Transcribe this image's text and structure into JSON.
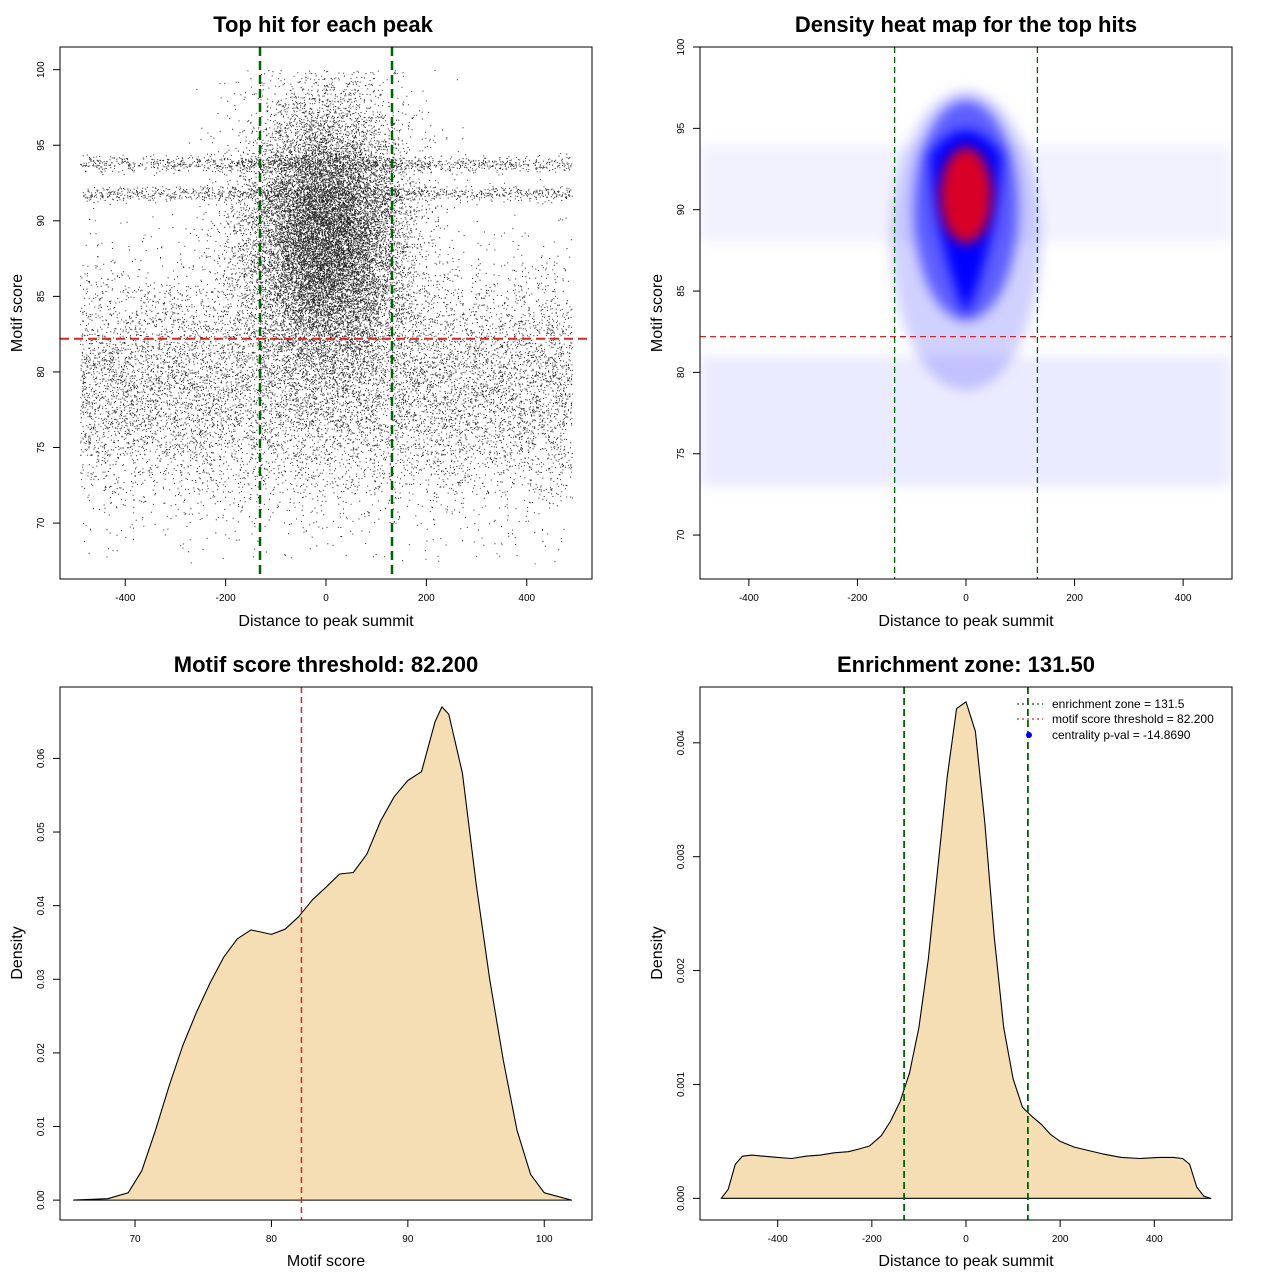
{
  "figure": {
    "background": "#ffffff"
  },
  "colors": {
    "points": "#000000",
    "zone_line": "#006400",
    "threshold_line": "#d62728",
    "density_fill": "#f5deb3",
    "heat_low": "#ffffff",
    "heat_mid": "#0000ff",
    "heat_high": "#ff0000",
    "legend_point": "#0000ff"
  },
  "chart_data": [
    {
      "id": "scatter",
      "type": "scatter",
      "title": "Top hit for each peak",
      "xlabel": "Distance to peak summit",
      "ylabel": "Motif score",
      "xlim": [
        -530,
        530
      ],
      "ylim": [
        66.3,
        101.5
      ],
      "xticks": [
        -400,
        -200,
        0,
        200,
        400
      ],
      "yticks": [
        70,
        75,
        80,
        85,
        90,
        95,
        100
      ],
      "point_count_estimate": 30000,
      "x_range": [
        -490,
        490
      ],
      "central_cluster": {
        "x_center": 0,
        "x_spread": 80,
        "y_center": 89,
        "y_spread": 4.5
      },
      "background_band": {
        "y_center": 79,
        "y_spread": 4
      },
      "dense_row_y": 91.8,
      "vlines": [
        -131.5,
        131.5
      ],
      "hline": 82.2
    },
    {
      "id": "heatmap",
      "type": "heatmap",
      "title": "Density heat map for the top hits",
      "xlabel": "Distance to peak summit",
      "ylabel": "Motif score",
      "xlim": [
        -490,
        490
      ],
      "ylim": [
        67.3,
        100.0
      ],
      "xticks": [
        -400,
        -200,
        0,
        200,
        400
      ],
      "yticks": [
        70,
        75,
        80,
        85,
        90,
        95,
        100
      ],
      "peak": {
        "x": 0,
        "y": 91.5
      },
      "vlines": [
        -131.5,
        131.5
      ],
      "hline": 82.2
    },
    {
      "id": "score_density",
      "type": "area",
      "title": "Motif score threshold: 82.200",
      "xlabel": "Motif score",
      "ylabel": "Density",
      "xlim": [
        64.5,
        103.5
      ],
      "ylim": [
        -0.0027,
        0.0697
      ],
      "xticks": [
        70,
        80,
        90,
        100
      ],
      "yticks": [
        0.0,
        0.01,
        0.02,
        0.03,
        0.04,
        0.05,
        0.06
      ],
      "ytick_labels": [
        "0.00",
        "0.01",
        "0.02",
        "0.03",
        "0.04",
        "0.05",
        "0.06"
      ],
      "x": [
        65.5,
        68,
        69.5,
        70.5,
        71.5,
        72.5,
        73.5,
        74.5,
        75.5,
        76.5,
        77.5,
        78.5,
        79,
        80,
        81,
        82,
        83,
        84,
        85,
        86,
        87,
        88,
        89,
        90,
        91,
        92,
        92.5,
        93,
        94,
        95,
        96,
        97,
        98,
        99,
        100,
        102
      ],
      "y": [
        0.0,
        0.0002,
        0.001,
        0.004,
        0.0095,
        0.0155,
        0.021,
        0.0255,
        0.0295,
        0.033,
        0.0355,
        0.0367,
        0.0365,
        0.0361,
        0.0368,
        0.0385,
        0.0408,
        0.0425,
        0.0443,
        0.0445,
        0.047,
        0.0515,
        0.0548,
        0.057,
        0.0582,
        0.065,
        0.067,
        0.066,
        0.058,
        0.043,
        0.03,
        0.019,
        0.0095,
        0.0035,
        0.001,
        0.0
      ],
      "vline": 82.2
    },
    {
      "id": "distance_density",
      "type": "area",
      "title": "Enrichment zone: 131.50",
      "xlabel": "Distance to peak summit",
      "ylabel": "Density",
      "xlim": [
        -565,
        565
      ],
      "ylim": [
        -0.00019,
        0.00449
      ],
      "xticks": [
        -400,
        -200,
        0,
        200,
        400
      ],
      "yticks": [
        0.0,
        0.001,
        0.002,
        0.003,
        0.004
      ],
      "ytick_labels": [
        "0.000",
        "0.001",
        "0.002",
        "0.003",
        "0.004"
      ],
      "x": [
        -520,
        -505,
        -490,
        -475,
        -455,
        -430,
        -400,
        -370,
        -340,
        -310,
        -280,
        -250,
        -230,
        -205,
        -180,
        -160,
        -140,
        -120,
        -100,
        -80,
        -60,
        -40,
        -20,
        0,
        20,
        40,
        60,
        80,
        100,
        120,
        140,
        160,
        180,
        200,
        230,
        260,
        290,
        330,
        370,
        410,
        440,
        460,
        475,
        490,
        505,
        520
      ],
      "y": [
        0.0,
        8e-05,
        0.0003,
        0.00037,
        0.00038,
        0.00037,
        0.00036,
        0.00035,
        0.00037,
        0.00038,
        0.0004,
        0.00041,
        0.00043,
        0.00046,
        0.00055,
        0.00068,
        0.00085,
        0.0011,
        0.0015,
        0.0021,
        0.0029,
        0.0037,
        0.0043,
        0.00436,
        0.0041,
        0.0033,
        0.0023,
        0.0015,
        0.00105,
        0.0008,
        0.00072,
        0.00065,
        0.00056,
        0.0005,
        0.00045,
        0.00042,
        0.00039,
        0.00036,
        0.00035,
        0.00036,
        0.00036,
        0.00035,
        0.0003,
        0.0001,
        2e-05,
        0.0
      ],
      "vlines": [
        -131.5,
        131.5
      ],
      "legend": [
        {
          "label": "enrichment zone = 131.5",
          "kind": "line",
          "color": "#006400"
        },
        {
          "label": "motif score threshold = 82.200",
          "kind": "line",
          "color": "#d62728"
        },
        {
          "label": "centrality p-val = -14.8690",
          "kind": "point",
          "color": "#0000ff"
        }
      ]
    }
  ]
}
